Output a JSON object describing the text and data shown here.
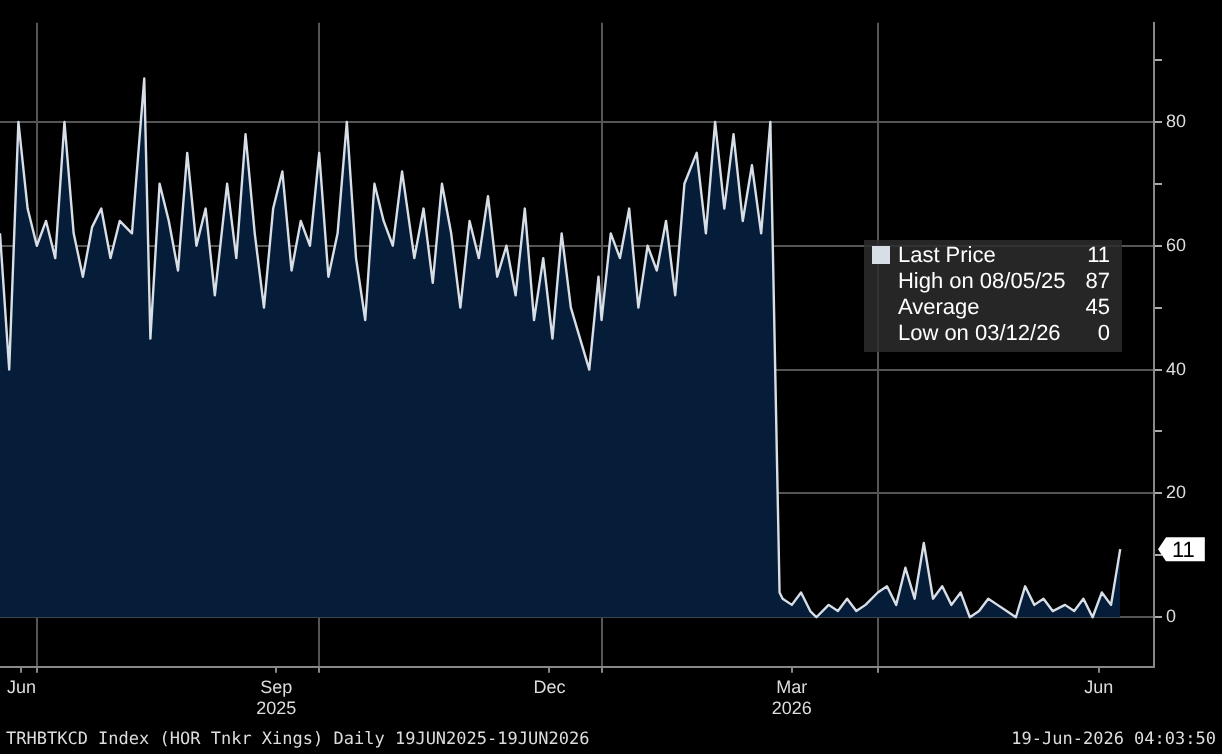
{
  "chart_data": {
    "type": "area",
    "xlim": [
      "2025-06-19",
      "2026-06-30"
    ],
    "ylim": [
      -8,
      96
    ],
    "xticks": [
      {
        "value": "2025-06-26",
        "label": "Jun"
      },
      {
        "value": "2025-07-01",
        "label": null
      },
      {
        "value": "2025-09-17",
        "label": "Sep\n2025"
      },
      {
        "value": "2025-10-01",
        "label": null
      },
      {
        "value": "2025-12-15",
        "label": "Dec"
      },
      {
        "value": "2026-01-01",
        "label": null
      },
      {
        "value": "2026-03-04",
        "label": "Mar\n2026"
      },
      {
        "value": "2026-04-01",
        "label": null
      },
      {
        "value": "2026-06-12",
        "label": "Jun"
      }
    ],
    "yticks": [
      0,
      {
        "value": 10,
        "label": null
      },
      20,
      {
        "value": 30,
        "label": null
      },
      40,
      {
        "value": 50,
        "label": null
      },
      60,
      {
        "value": 70,
        "label": null
      },
      80,
      {
        "value": 90,
        "label": null
      }
    ],
    "grid": true,
    "legend": "right",
    "marker": "none",
    "line_style": "solid",
    "x": [
      "2025-06-19",
      "2025-06-22",
      "2025-06-25",
      "2025-06-28",
      "2025-07-01",
      "2025-07-04",
      "2025-07-07",
      "2025-07-10",
      "2025-07-13",
      "2025-07-16",
      "2025-07-19",
      "2025-07-22",
      "2025-07-25",
      "2025-07-28",
      "2025-08-01",
      "2025-08-05",
      "2025-08-07",
      "2025-08-10",
      "2025-08-13",
      "2025-08-16",
      "2025-08-19",
      "2025-08-22",
      "2025-08-25",
      "2025-08-28",
      "2025-09-01",
      "2025-09-04",
      "2025-09-07",
      "2025-09-10",
      "2025-09-13",
      "2025-09-16",
      "2025-09-19",
      "2025-09-22",
      "2025-09-25",
      "2025-09-28",
      "2025-10-01",
      "2025-10-04",
      "2025-10-07",
      "2025-10-10",
      "2025-10-13",
      "2025-10-16",
      "2025-10-19",
      "2025-10-22",
      "2025-10-25",
      "2025-10-28",
      "2025-11-01",
      "2025-11-04",
      "2025-11-07",
      "2025-11-10",
      "2025-11-13",
      "2025-11-16",
      "2025-11-19",
      "2025-11-22",
      "2025-11-25",
      "2025-11-28",
      "2025-12-01",
      "2025-12-04",
      "2025-12-07",
      "2025-12-10",
      "2025-12-13",
      "2025-12-16",
      "2025-12-19",
      "2025-12-22",
      "2025-12-28",
      "2025-12-31",
      "2026-01-01",
      "2026-01-04",
      "2026-01-07",
      "2026-01-10",
      "2026-01-13",
      "2026-01-16",
      "2026-01-19",
      "2026-01-22",
      "2026-01-25",
      "2026-01-28",
      "2026-02-01",
      "2026-02-04",
      "2026-02-07",
      "2026-02-10",
      "2026-02-13",
      "2026-02-16",
      "2026-02-19",
      "2026-02-22",
      "2026-02-25",
      "2026-02-28",
      "2026-03-01",
      "2026-03-04",
      "2026-03-07",
      "2026-03-10",
      "2026-03-12",
      "2026-03-16",
      "2026-03-19",
      "2026-03-22",
      "2026-03-25",
      "2026-03-28",
      "2026-04-01",
      "2026-04-04",
      "2026-04-07",
      "2026-04-10",
      "2026-04-13",
      "2026-04-16",
      "2026-04-19",
      "2026-04-22",
      "2026-04-25",
      "2026-04-28",
      "2026-05-01",
      "2026-05-04",
      "2026-05-07",
      "2026-05-10",
      "2026-05-13",
      "2026-05-16",
      "2026-05-19",
      "2026-05-22",
      "2026-05-25",
      "2026-05-28",
      "2026-06-01",
      "2026-06-04",
      "2026-06-07",
      "2026-06-10",
      "2026-06-13",
      "2026-06-16",
      "2026-06-19"
    ],
    "series": [
      {
        "name": "Last Price",
        "color": "#d8dee6",
        "values": [
          62,
          40,
          80,
          66,
          60,
          64,
          58,
          80,
          62,
          55,
          63,
          66,
          58,
          64,
          62,
          87,
          45,
          70,
          64,
          56,
          75,
          60,
          66,
          52,
          70,
          58,
          78,
          62,
          50,
          66,
          72,
          56,
          64,
          60,
          75,
          55,
          62,
          80,
          58,
          48,
          70,
          64,
          60,
          72,
          58,
          66,
          54,
          70,
          62,
          50,
          64,
          58,
          68,
          55,
          60,
          52,
          66,
          48,
          58,
          45,
          62,
          50,
          40,
          55,
          48,
          62,
          58,
          66,
          50,
          60,
          56,
          64,
          52,
          70,
          75,
          62,
          80,
          66,
          78,
          64,
          73,
          62,
          80,
          4,
          3,
          2,
          4,
          1,
          0,
          2,
          1,
          3,
          1,
          2,
          4,
          5,
          2,
          8,
          3,
          12,
          3,
          5,
          2,
          4,
          0,
          1,
          3,
          2,
          1,
          0,
          5,
          2,
          3,
          1,
          2,
          1,
          3,
          0,
          4,
          2,
          11
        ]
      }
    ],
    "annotations": [
      "11",
      "High on 08/05/25 87",
      "Average 45",
      "Low on 03/12/26 0",
      {
        "text": "11",
        "x": "2026-06-19",
        "y": 11
      },
      "TRHBTKCD Index (HOR Tnkr Xings) Daily 19JUN2025-19JUN2026",
      "19-Jun-2026 04:03:50"
    ]
  }
}
